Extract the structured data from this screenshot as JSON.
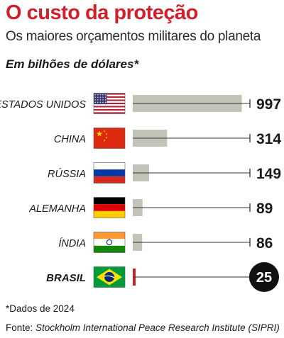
{
  "header": {
    "title": "O custo da proteção",
    "subtitle": "Os maiores orçamentos militares do planeta",
    "unit_note": "Em bilhões de dólares*"
  },
  "footer": {
    "footnote": "*Dados de 2024",
    "source_prefix": "Fonte: ",
    "source_name": "Stockholm International Peace Research Institute (SIPRI)"
  },
  "colors": {
    "title": "#d0202a",
    "bar": "#c3c3b8",
    "highlight_bar": "#d0202a",
    "highlight_badge": "#111111",
    "leader_line": "#333333"
  },
  "chart_data": {
    "type": "bar",
    "orientation": "horizontal",
    "categories": [
      "ESTADOS UNIDOS",
      "CHINA",
      "RÚSSIA",
      "ALEMANHA",
      "ÍNDIA",
      "BRASIL"
    ],
    "values": [
      997,
      314,
      149,
      89,
      86,
      25
    ],
    "value_labels": [
      "997",
      "314",
      "149",
      "89",
      "86",
      "25"
    ],
    "flags": [
      "flag-usa-icon",
      "flag-china-icon",
      "flag-russia-icon",
      "flag-germany-icon",
      "flag-india-icon",
      "flag-brazil-icon"
    ],
    "highlight": "BRASIL",
    "xlim": [
      0,
      1000
    ],
    "title": "O custo da proteção",
    "xlabel": "",
    "ylabel": ""
  }
}
